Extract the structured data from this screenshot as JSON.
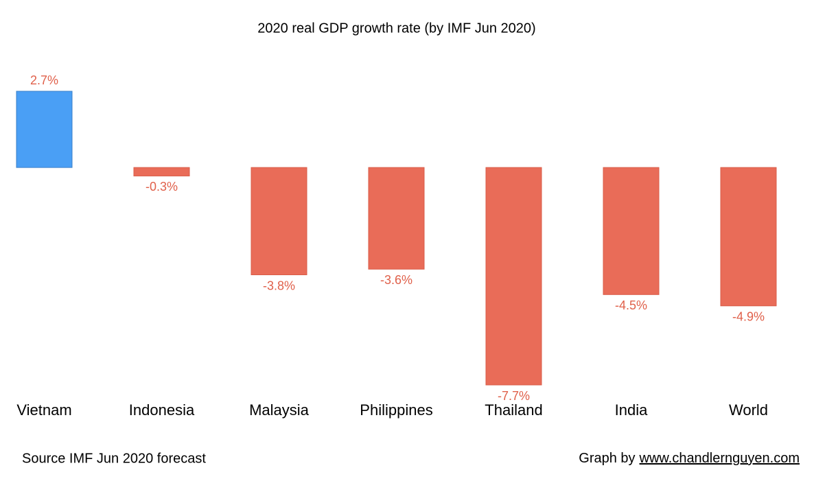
{
  "chart_data": {
    "type": "bar",
    "title": "2020 real GDP growth rate (by IMF Jun 2020)",
    "categories": [
      "Vietnam",
      "Indonesia",
      "Malaysia",
      "Philippines",
      "Thailand",
      "India",
      "World"
    ],
    "values": [
      2.7,
      -0.3,
      -3.8,
      -3.6,
      -7.7,
      -4.5,
      -4.9
    ],
    "value_labels": [
      "2.7%",
      "-0.3%",
      "-3.8%",
      "-3.6%",
      "-7.7%",
      "-4.5%",
      "-4.9%"
    ],
    "colors": [
      "#4a9ff5",
      "#e96c58",
      "#e96c58",
      "#e96c58",
      "#e96c58",
      "#e96c58",
      "#e96c58"
    ],
    "label_color": "#e0604a",
    "source": "Source IMF Jun 2020 forecast",
    "credit_prefix": "Graph by",
    "credit_link": "www.chandlernguyen.com"
  }
}
